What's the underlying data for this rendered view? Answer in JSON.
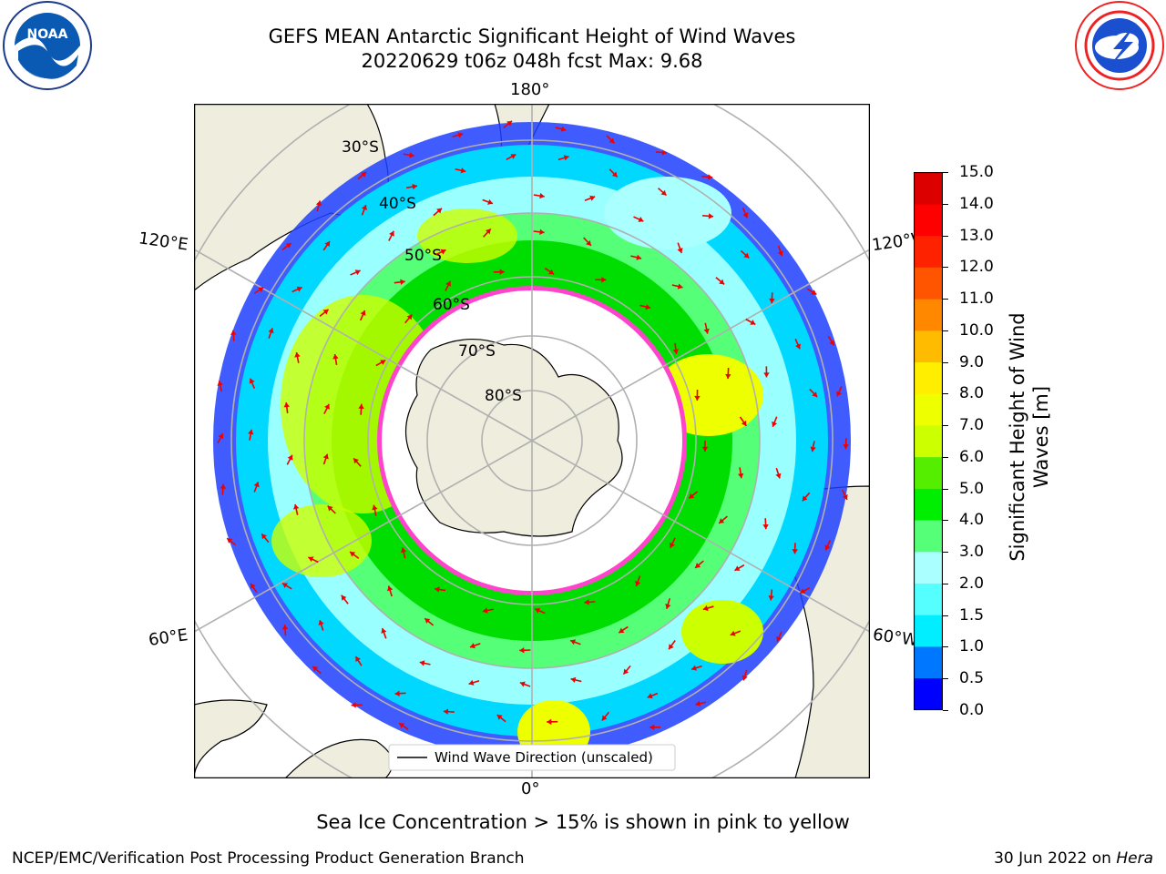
{
  "title_line1": "GEFS MEAN Antarctic Significant Height of Wind Waves",
  "title_line2": "20220629 t06z 048h fcst   Max: 9.68",
  "logos": {
    "left_name": "noaa-logo",
    "left_text": "NOAA",
    "left_ring_text": "NATIONAL OCEANIC AND ATMOSPHERIC ADMINISTRATION • U.S. DEPARTMENT OF COMMERCE",
    "right_name": "national-weather-service-logo",
    "right_ring_text": "NATIONAL WEATHER SERVICE"
  },
  "map": {
    "projection": "south-polar-stereographic",
    "longitude_labels": {
      "top": "180°",
      "bottom": "0°",
      "left_upper": "120°E",
      "right_upper": "120°W",
      "left_lower": "60°E",
      "right_lower": "60°W"
    },
    "latitude_labels": [
      "30°S",
      "40°S",
      "50°S",
      "60°S",
      "70°S",
      "80°S"
    ],
    "land_color": "#efedde",
    "ice_edge_colors": [
      "#ff44cc",
      "#ff9900",
      "#ffee00"
    ],
    "arrow_color": "#ee0000",
    "legend_label": "Wind Wave Direction (unscaled)"
  },
  "colorbar": {
    "title": "Significant Height of Wind Waves [m]",
    "title_line1": "Significant Height of Wind",
    "title_line2": "Waves [m]",
    "ticks": [
      "0.0",
      "0.5",
      "1.0",
      "1.5",
      "2.0",
      "3.0",
      "4.0",
      "5.0",
      "6.0",
      "7.0",
      "8.0",
      "9.0",
      "10.0",
      "11.0",
      "12.0",
      "13.0",
      "14.0",
      "15.0"
    ],
    "colors": [
      "#0000ff",
      "#0077ff",
      "#00eeff",
      "#55ffff",
      "#aaffff",
      "#55ff77",
      "#00ee00",
      "#55ee00",
      "#ccff00",
      "#eeff00",
      "#ffee00",
      "#ffbb00",
      "#ff8800",
      "#ff5500",
      "#ff2200",
      "#ff0000",
      "#dd0000"
    ]
  },
  "ice_note": "Sea Ice Concentration > 15% is shown in pink to yellow",
  "footer_left": "NCEP/EMC/Verification Post Processing Product Generation Branch",
  "footer_right_date": "30 Jun 2022 on ",
  "footer_right_host": "Hera"
}
